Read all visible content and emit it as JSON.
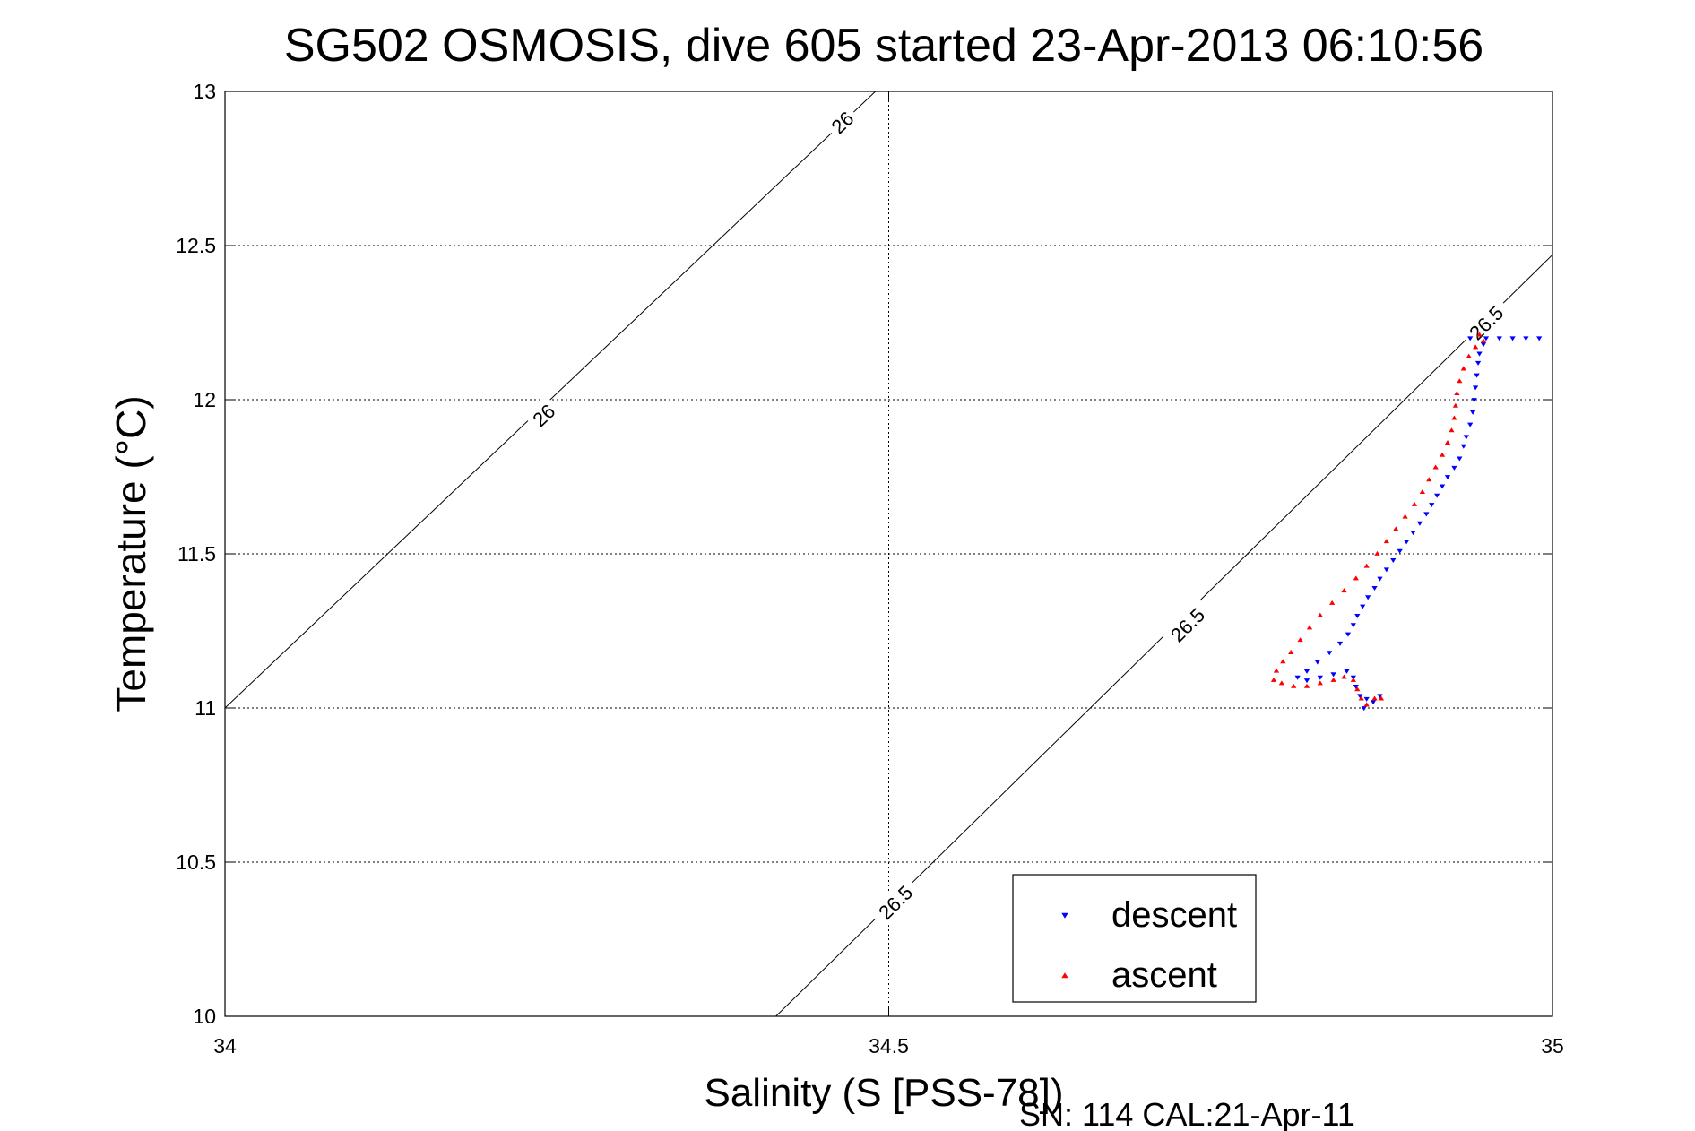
{
  "chart_data": {
    "type": "scatter",
    "title": "SG502 OSMOSIS, dive 605 started 23-Apr-2013 06:10:56",
    "xlabel": "Salinity (S [PSS-78])",
    "ylabel": "Temperature (°C)",
    "footnote": "SN: 114  CAL:21-Apr-11",
    "xlim": [
      34,
      35
    ],
    "ylim": [
      10,
      13
    ],
    "xticks": [
      34,
      34.5,
      35
    ],
    "xtick_labels": [
      "34",
      "34.5",
      "35"
    ],
    "yticks": [
      10,
      10.5,
      11,
      11.5,
      12,
      12.5,
      13
    ],
    "ytick_labels": [
      "10",
      "10.5",
      "11",
      "11.5",
      "12",
      "12.5",
      "13"
    ],
    "grid": true,
    "legend_position": "bottom-right",
    "contours": [
      {
        "label": "26",
        "points": [
          [
            34.0,
            11.0
          ],
          [
            34.49,
            13.0
          ]
        ],
        "label_positions": [
          [
            34.24,
            11.95
          ],
          [
            34.465,
            12.9
          ]
        ]
      },
      {
        "label": "26.5",
        "points": [
          [
            34.415,
            10.0
          ],
          [
            35.0,
            12.47
          ]
        ],
        "label_positions": [
          [
            34.505,
            10.37
          ],
          [
            34.725,
            11.27
          ],
          [
            34.95,
            12.25
          ]
        ]
      }
    ],
    "series": [
      {
        "name": "descent",
        "marker": "triangle-down",
        "color": "#0000ff",
        "points": [
          [
            34.938,
            12.2
          ],
          [
            34.95,
            12.2
          ],
          [
            34.96,
            12.2
          ],
          [
            34.97,
            12.2
          ],
          [
            34.98,
            12.2
          ],
          [
            34.99,
            12.2
          ],
          [
            34.948,
            12.18
          ],
          [
            34.945,
            12.15
          ],
          [
            34.944,
            12.12
          ],
          [
            34.943,
            12.08
          ],
          [
            34.942,
            12.04
          ],
          [
            34.941,
            12.0
          ],
          [
            34.94,
            11.96
          ],
          [
            34.938,
            11.92
          ],
          [
            34.935,
            11.88
          ],
          [
            34.933,
            11.85
          ],
          [
            34.93,
            11.81
          ],
          [
            34.926,
            11.78
          ],
          [
            34.921,
            11.75
          ],
          [
            34.917,
            11.72
          ],
          [
            34.913,
            11.69
          ],
          [
            34.909,
            11.66
          ],
          [
            34.905,
            11.63
          ],
          [
            34.9,
            11.6
          ],
          [
            34.895,
            11.57
          ],
          [
            34.89,
            11.54
          ],
          [
            34.885,
            11.51
          ],
          [
            34.88,
            11.48
          ],
          [
            34.875,
            11.45
          ],
          [
            34.87,
            11.42
          ],
          [
            34.866,
            11.39
          ],
          [
            34.861,
            11.36
          ],
          [
            34.857,
            11.33
          ],
          [
            34.853,
            11.3
          ],
          [
            34.85,
            11.27
          ],
          [
            34.846,
            11.24
          ],
          [
            34.84,
            11.21
          ],
          [
            34.832,
            11.18
          ],
          [
            34.823,
            11.15
          ],
          [
            34.815,
            11.12
          ],
          [
            34.808,
            11.1
          ],
          [
            34.815,
            11.09
          ],
          [
            34.825,
            11.1
          ],
          [
            34.835,
            11.11
          ],
          [
            34.845,
            11.12
          ],
          [
            34.85,
            11.1
          ],
          [
            34.852,
            11.07
          ],
          [
            34.855,
            11.04
          ],
          [
            34.86,
            11.03
          ],
          [
            34.865,
            11.02
          ],
          [
            34.87,
            11.04
          ],
          [
            34.858,
            11.0
          ]
        ]
      },
      {
        "name": "ascent",
        "marker": "triangle-up",
        "color": "#ff0000",
        "points": [
          [
            34.945,
            12.21
          ],
          [
            34.948,
            12.19
          ],
          [
            34.942,
            12.17
          ],
          [
            34.937,
            12.14
          ],
          [
            34.933,
            12.1
          ],
          [
            34.93,
            12.06
          ],
          [
            34.928,
            12.02
          ],
          [
            34.927,
            11.98
          ],
          [
            34.926,
            11.94
          ],
          [
            34.924,
            11.9
          ],
          [
            34.921,
            11.86
          ],
          [
            34.917,
            11.82
          ],
          [
            34.912,
            11.78
          ],
          [
            34.907,
            11.74
          ],
          [
            34.902,
            11.7
          ],
          [
            34.896,
            11.66
          ],
          [
            34.889,
            11.62
          ],
          [
            34.882,
            11.58
          ],
          [
            34.875,
            11.54
          ],
          [
            34.868,
            11.5
          ],
          [
            34.86,
            11.46
          ],
          [
            34.852,
            11.42
          ],
          [
            34.843,
            11.38
          ],
          [
            34.834,
            11.34
          ],
          [
            34.825,
            11.3
          ],
          [
            34.817,
            11.26
          ],
          [
            34.81,
            11.22
          ],
          [
            34.803,
            11.18
          ],
          [
            34.797,
            11.15
          ],
          [
            34.792,
            11.12
          ],
          [
            34.79,
            11.09
          ],
          [
            34.796,
            11.08
          ],
          [
            34.805,
            11.07
          ],
          [
            34.815,
            11.07
          ],
          [
            34.825,
            11.08
          ],
          [
            34.835,
            11.09
          ],
          [
            34.843,
            11.1
          ],
          [
            34.85,
            11.09
          ],
          [
            34.853,
            11.06
          ],
          [
            34.856,
            11.03
          ],
          [
            34.86,
            11.01
          ],
          [
            34.866,
            11.03
          ],
          [
            34.871,
            11.03
          ]
        ]
      }
    ]
  }
}
